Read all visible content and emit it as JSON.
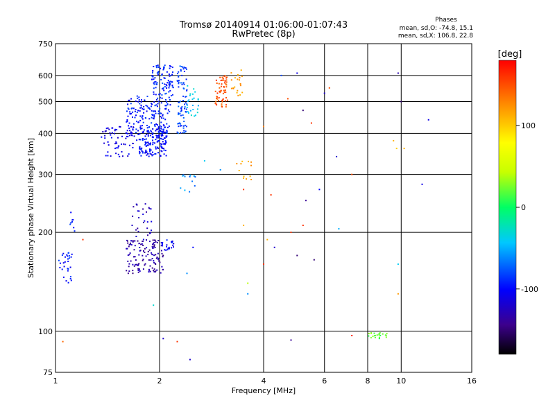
{
  "chart_data": {
    "type": "scatter",
    "title": "Tromsø 20140914 01:06:00-01:07:43",
    "subtitle": "RwPretec (8p)",
    "xlabel": "Frequency [MHz]",
    "ylabel": "Stationary phase Virtual Height [km]",
    "x_scale": "log",
    "y_scale": "log",
    "xlim": [
      1,
      16
    ],
    "ylim": [
      75,
      750
    ],
    "x_ticks": [
      1,
      2,
      4,
      6,
      8,
      10,
      16
    ],
    "x_tick_labels": [
      "1",
      "2",
      "4",
      "6",
      "8",
      "10",
      "16"
    ],
    "y_ticks": [
      75,
      100,
      200,
      300,
      400,
      500,
      600,
      750
    ],
    "y_tick_labels": [
      "75",
      "100",
      "200",
      "300",
      "400",
      "500",
      "600",
      "750"
    ],
    "grid": true,
    "stats": {
      "heading": "Phases",
      "line1": "mean, sd,O: -74.8, 15.1",
      "line2": "mean, sd,X: 106.8, 22.8"
    },
    "colorbar": {
      "label": "[deg]",
      "range": [
        -180,
        180
      ],
      "ticks": [
        100,
        0,
        -100
      ],
      "tick_labels": [
        "100",
        "0",
        "-100"
      ]
    },
    "clusters": [
      {
        "x": [
          1.75,
          2.1
        ],
        "y": [
          340,
          420
        ],
        "phase": -100,
        "count": 160
      },
      {
        "x": [
          1.6,
          2.15
        ],
        "y": [
          400,
          520
        ],
        "phase": -95,
        "count": 170
      },
      {
        "x": [
          1.9,
          2.2
        ],
        "y": [
          520,
          650
        ],
        "phase": -90,
        "count": 90
      },
      {
        "x": [
          1.35,
          1.75
        ],
        "y": [
          340,
          420
        ],
        "phase": -110,
        "count": 70
      },
      {
        "x": [
          2.25,
          2.4
        ],
        "y": [
          400,
          650
        ],
        "phase": -80,
        "count": 80
      },
      {
        "x": [
          2.4,
          2.6
        ],
        "y": [
          450,
          560
        ],
        "phase": -40,
        "count": 25
      },
      {
        "x": [
          2.9,
          3.15
        ],
        "y": [
          480,
          600
        ],
        "phase": 150,
        "count": 60
      },
      {
        "x": [
          3.2,
          3.5
        ],
        "y": [
          520,
          640
        ],
        "phase": 120,
        "count": 20
      },
      {
        "x": [
          1.6,
          2.05
        ],
        "y": [
          150,
          190
        ],
        "phase": -135,
        "count": 130
      },
      {
        "x": [
          1.65,
          1.9
        ],
        "y": [
          190,
          245
        ],
        "phase": -125,
        "count": 30
      },
      {
        "x": [
          2.02,
          2.2
        ],
        "y": [
          170,
          190
        ],
        "phase": -100,
        "count": 20
      },
      {
        "x": [
          1.02,
          1.12
        ],
        "y": [
          140,
          175
        ],
        "phase": -95,
        "count": 30
      },
      {
        "x": [
          1.1,
          1.15
        ],
        "y": [
          200,
          240
        ],
        "phase": -95,
        "count": 8
      },
      {
        "x": [
          2.3,
          2.55
        ],
        "y": [
          265,
          300
        ],
        "phase": -60,
        "count": 12
      },
      {
        "x": [
          3.3,
          3.7
        ],
        "y": [
          285,
          330
        ],
        "phase": 120,
        "count": 12
      },
      {
        "x": [
          7.9,
          9.1
        ],
        "y": [
          95,
          99
        ],
        "phase": 20,
        "count": 25
      }
    ],
    "isolated_points": [
      [
        5.2,
        470,
        -150
      ],
      [
        5.5,
        430,
        160
      ],
      [
        6.0,
        530,
        -120
      ],
      [
        4.0,
        420,
        130
      ],
      [
        4.5,
        600,
        -80
      ],
      [
        5.0,
        610,
        -110
      ],
      [
        6.2,
        550,
        150
      ],
      [
        9.8,
        610,
        -130
      ],
      [
        10.0,
        500,
        -150
      ],
      [
        12.0,
        440,
        -110
      ],
      [
        11.5,
        280,
        -110
      ],
      [
        9.7,
        360,
        100
      ],
      [
        9.5,
        380,
        110
      ],
      [
        10.2,
        360,
        110
      ],
      [
        5.3,
        250,
        -140
      ],
      [
        5.8,
        270,
        -100
      ],
      [
        7.2,
        300,
        150
      ],
      [
        6.6,
        205,
        -50
      ],
      [
        4.2,
        260,
        160
      ],
      [
        4.8,
        200,
        160
      ],
      [
        4.1,
        190,
        110
      ],
      [
        3.5,
        210,
        110
      ],
      [
        4.3,
        180,
        -120
      ],
      [
        5.0,
        170,
        -150
      ],
      [
        2.5,
        180,
        -100
      ],
      [
        2.4,
        150,
        -60
      ],
      [
        2.05,
        95,
        -120
      ],
      [
        2.25,
        93,
        160
      ],
      [
        2.45,
        82,
        -120
      ],
      [
        1.05,
        93,
        140
      ],
      [
        1.2,
        190,
        160
      ],
      [
        4.8,
        94,
        -140
      ],
      [
        7.2,
        97,
        170
      ],
      [
        3.6,
        140,
        40
      ],
      [
        3.6,
        130,
        -60
      ],
      [
        4.0,
        160,
        160
      ],
      [
        5.2,
        210,
        160
      ],
      [
        5.6,
        165,
        -150
      ],
      [
        3.5,
        270,
        160
      ],
      [
        9.8,
        160,
        -40
      ],
      [
        9.8,
        130,
        120
      ],
      [
        6.5,
        340,
        -120
      ],
      [
        2.7,
        330,
        -40
      ],
      [
        3.0,
        310,
        -60
      ],
      [
        1.92,
        120,
        -30
      ],
      [
        4.7,
        510,
        150
      ]
    ]
  }
}
